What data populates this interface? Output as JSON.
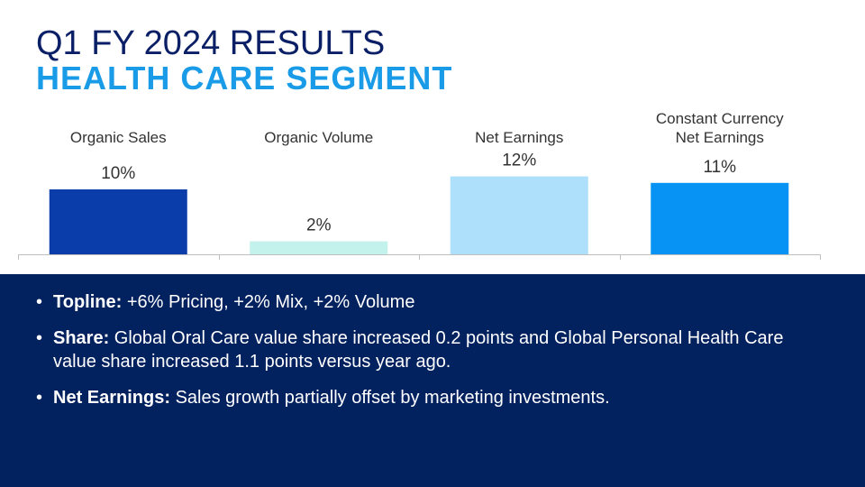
{
  "slide": {
    "title": "Q1 FY 2024 RESULTS",
    "subtitle": "HEALTH CARE SEGMENT"
  },
  "chart_data": {
    "type": "bar",
    "categories": [
      "Organic Sales",
      "Organic Volume",
      "Net Earnings",
      "Constant Currency Net Earnings"
    ],
    "category_lines": [
      [
        "Organic Sales"
      ],
      [
        "Organic Volume"
      ],
      [
        "Net Earnings"
      ],
      [
        "Constant Currency",
        "Net Earnings"
      ]
    ],
    "values": [
      10,
      2,
      12,
      11
    ],
    "value_labels": [
      "10%",
      "2%",
      "12%",
      "11%"
    ],
    "colors": [
      "#0a3caa",
      "#c3f1ec",
      "#aee0fb",
      "#0693f4"
    ],
    "ylim": [
      0,
      12
    ],
    "grid": false,
    "legend": "none"
  },
  "bullets": [
    {
      "bullet": "•",
      "label": "Topline:",
      "text": " +6% Pricing, +2% Mix, +2% Volume"
    },
    {
      "bullet": "•",
      "label": "Share:",
      "text": " Global Oral Care value share increased 0.2 points and Global Personal Health Care value share increased 1.1 points versus year ago."
    },
    {
      "bullet": "•",
      "label": "Net Earnings:",
      "text": " Sales growth partially offset by marketing investments."
    }
  ]
}
